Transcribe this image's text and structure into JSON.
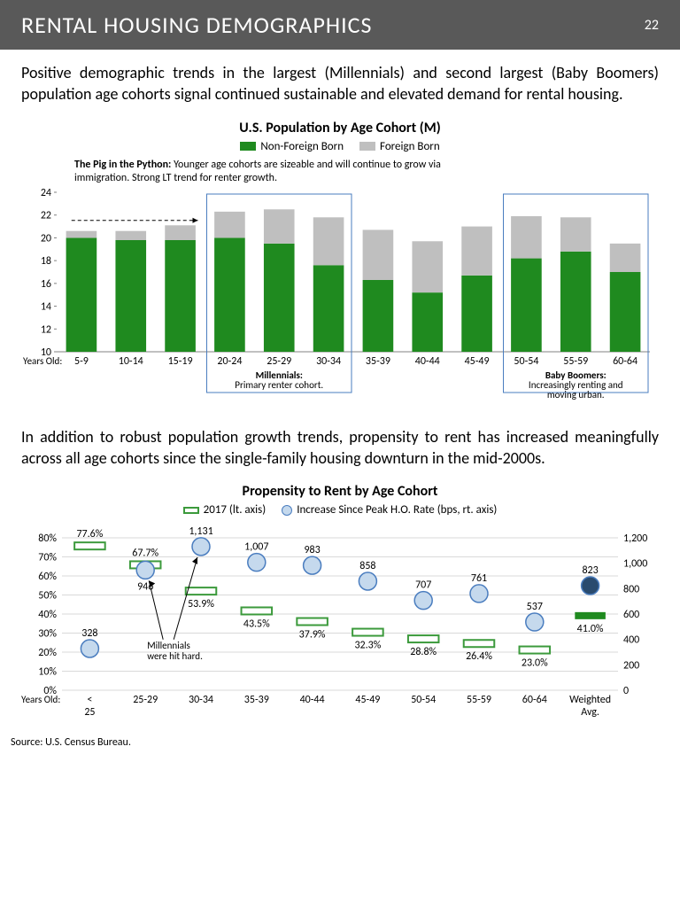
{
  "header": {
    "title": "RENTAL HOUSING DEMOGRAPHICS",
    "page_number": "22",
    "bg_color": "#595959",
    "text_color": "#ffffff"
  },
  "paragraph1": "Positive demographic trends in the largest (Millennials) and second largest (Baby Boomers) population age cohorts signal continued sustainable and elevated demand for rental housing.",
  "paragraph2": "In addition to robust population growth trends, propensity to rent has increased meaningfully across all age cohorts since the single-family housing downturn in the mid-2000s.",
  "chart1": {
    "type": "stacked_bar",
    "title": "U.S. Population by Age Cohort (M)",
    "legend": [
      {
        "label": "Non-Foreign Born",
        "color": "#1f8a1f"
      },
      {
        "label": "Foreign Born",
        "color": "#bfbfbf"
      }
    ],
    "python_annotation": {
      "bold": "The Pig in the Python:",
      "text": "Younger age cohorts are sizeable and will continue to grow via immigration.  Strong LT trend for renter growth."
    },
    "y_axis": {
      "min": 10,
      "max": 24,
      "step": 2,
      "ticks": [
        10,
        12,
        14,
        16,
        18,
        20,
        22,
        24
      ]
    },
    "x_label": "Years Old:",
    "categories": [
      "5-9",
      "10-14",
      "15-19",
      "20-24",
      "25-29",
      "30-34",
      "35-39",
      "40-44",
      "45-49",
      "50-54",
      "55-59",
      "60-64"
    ],
    "non_foreign": [
      20.0,
      19.8,
      19.8,
      20.0,
      19.5,
      17.6,
      16.3,
      15.2,
      16.7,
      18.2,
      18.8,
      17.0
    ],
    "foreign": [
      0.6,
      0.8,
      1.3,
      2.3,
      3.0,
      4.2,
      4.4,
      4.5,
      4.3,
      3.7,
      3.0,
      2.5
    ],
    "highlight_boxes": [
      {
        "start_index": 3,
        "end_index": 5,
        "label_bold": "Millennials:",
        "label_text": "Primary renter cohort."
      },
      {
        "start_index": 9,
        "end_index": 11,
        "label_bold": "Baby Boomers:",
        "label_text": "Increasingly renting and moving urban."
      }
    ],
    "box_border_color": "#4a7dbf",
    "bar_color_primary": "#1f8a1f",
    "bar_color_secondary": "#bfbfbf",
    "axis_color": "#808080",
    "axis_text_color": "#000000",
    "axis_font_size": 12
  },
  "chart2": {
    "type": "combined_bar_scatter",
    "title": "Propensity to Rent by Age Cohort",
    "legend": [
      {
        "type": "bar_outline",
        "label": "2017 (lt. axis)",
        "color": "#3c9a3c"
      },
      {
        "type": "circle",
        "label": "Increase Since Peak H.O. Rate (bps, rt. axis)",
        "fill": "#c5d9ed",
        "stroke": "#4a7dbf"
      }
    ],
    "x_label": "Years Old:",
    "categories": [
      "< 25",
      "25-29",
      "30-34",
      "35-39",
      "40-44",
      "45-49",
      "50-54",
      "55-59",
      "60-64",
      "Weighted Avg."
    ],
    "pct_values": [
      77.6,
      67.7,
      53.9,
      43.5,
      37.9,
      32.3,
      28.8,
      26.4,
      23.0,
      41.0
    ],
    "bps_values": [
      328,
      946,
      1131,
      1007,
      983,
      858,
      707,
      761,
      537,
      823
    ],
    "left_axis": {
      "min": 0,
      "max": 80,
      "step": 10,
      "suffix": "%",
      "ticks": [
        0,
        10,
        20,
        30,
        40,
        50,
        60,
        70,
        80
      ]
    },
    "right_axis": {
      "min": 0,
      "max": 1200,
      "step": 200,
      "ticks": [
        0,
        200,
        400,
        600,
        800,
        1000,
        1200
      ]
    },
    "bar_outline_color": "#3c9a3c",
    "bar_fill_solid": "#1f8a1f",
    "circle_fill": "#c5d9ed",
    "circle_fill_dark": "#2a4b6e",
    "circle_stroke": "#4a7dbf",
    "grid_color": "#d9d9d9",
    "millennial_note": "Millennials were hit hard.",
    "axis_font_size": 12
  },
  "source": "Source:  U.S. Census Bureau."
}
